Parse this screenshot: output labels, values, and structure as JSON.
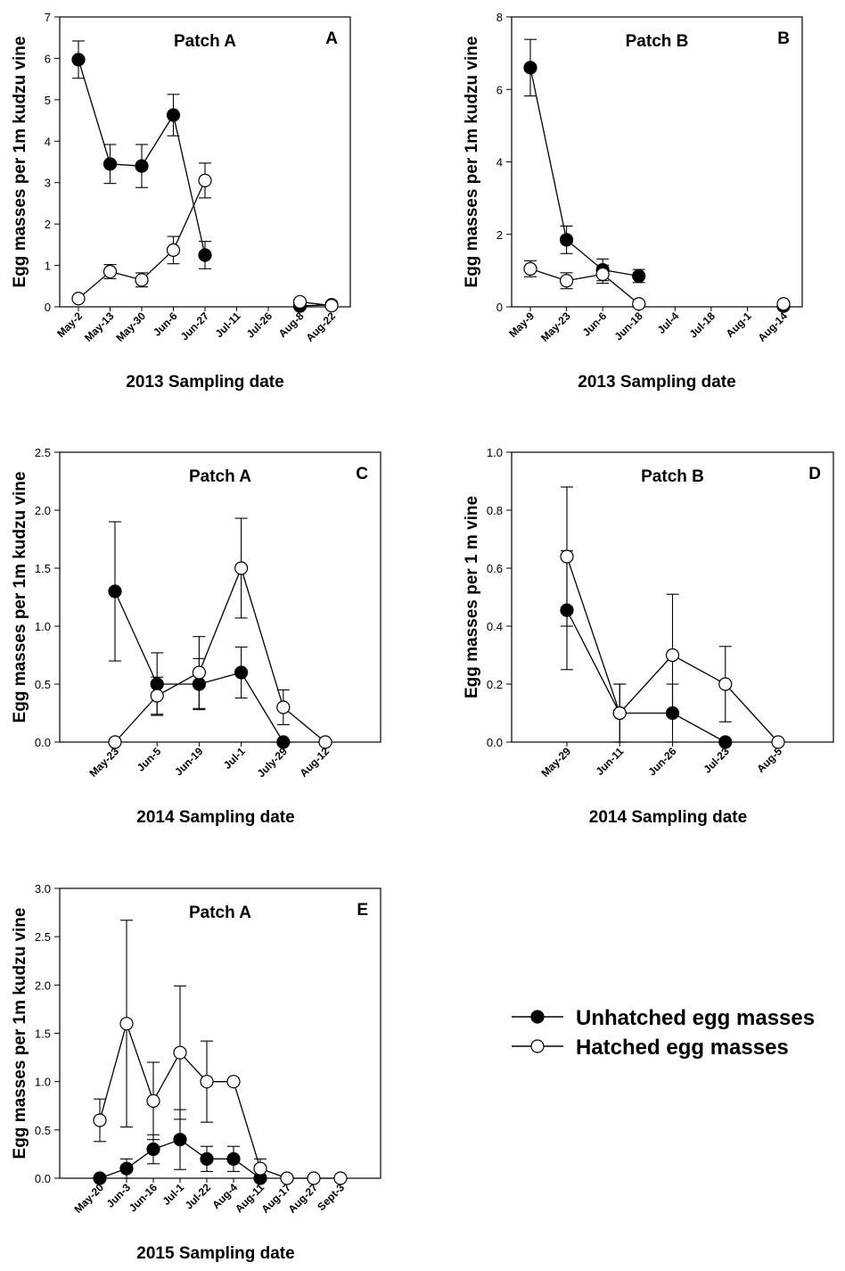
{
  "legend": {
    "unhatched": "Unhatched egg masses",
    "hatched": "Hatched egg masses"
  },
  "chart_data": [
    {
      "type": "line",
      "panel_letter": "A",
      "title": "Patch A",
      "xlabel": "2013 Sampling date",
      "ylabel": "Egg masses per 1m kudzu vine",
      "categories": [
        "May-2",
        "May-13",
        "May-30",
        "Jun-6",
        "Jun-27",
        "Jul-11",
        "Jul-26",
        "Aug-8",
        "Aug-22"
      ],
      "yticks": [
        "0",
        "1",
        "2",
        "3",
        "4",
        "5",
        "6",
        "7"
      ],
      "ylim": [
        0,
        7
      ],
      "series": [
        {
          "key": "unhatched",
          "x": [
            0,
            1,
            2,
            3,
            4
          ],
          "values": [
            5.97,
            3.45,
            3.4,
            4.63,
            1.25
          ],
          "errors": [
            0.45,
            0.47,
            0.52,
            0.5,
            0.33
          ]
        },
        {
          "key": "unhatched",
          "x": [
            7,
            8
          ],
          "values": [
            0.02,
            0.05
          ],
          "errors": [
            0.05,
            0.04
          ]
        },
        {
          "key": "hatched",
          "x": [
            0,
            1,
            2,
            3,
            4
          ],
          "values": [
            0.2,
            0.85,
            0.65,
            1.37,
            3.05
          ],
          "errors": [
            0,
            0.17,
            0.17,
            0.33,
            0.42
          ]
        },
        {
          "key": "hatched",
          "x": [
            7,
            8
          ],
          "values": [
            0.12,
            0.03
          ],
          "errors": [
            0.04,
            0.03
          ]
        }
      ]
    },
    {
      "type": "line",
      "panel_letter": "B",
      "title": "Patch B",
      "xlabel": "2013 Sampling date",
      "ylabel": "Egg masses per 1m kudzu vine",
      "categories": [
        "May-9",
        "May-23",
        "Jun-6",
        "Jun-18",
        "Jul-4",
        "Jul-18",
        "Aug-1",
        "Aug-14"
      ],
      "yticks": [
        "0",
        "2",
        "4",
        "6",
        "8"
      ],
      "ylim": [
        0,
        8
      ],
      "series": [
        {
          "key": "unhatched",
          "x": [
            0,
            1,
            2,
            3
          ],
          "values": [
            6.6,
            1.85,
            1.02,
            0.85
          ],
          "errors": [
            0.78,
            0.38,
            0.3,
            0.18
          ]
        },
        {
          "key": "unhatched",
          "x": [
            7
          ],
          "values": [
            0.02
          ],
          "errors": [
            0
          ]
        },
        {
          "key": "hatched",
          "x": [
            0,
            1,
            2,
            3
          ],
          "values": [
            1.05,
            0.72,
            0.9,
            0.08
          ],
          "errors": [
            0.22,
            0.22,
            0.25,
            0
          ]
        },
        {
          "key": "hatched",
          "x": [
            7
          ],
          "values": [
            0.08
          ],
          "errors": [
            0
          ]
        }
      ]
    },
    {
      "type": "line",
      "panel_letter": "C",
      "title": "Patch A",
      "xlabel": "2014 Sampling date",
      "ylabel": "Egg masses per 1m kudzu vine",
      "categories": [
        "May-23",
        "Jun-5",
        "Jun-19",
        "Jul-1",
        "July-29",
        "Aug-12"
      ],
      "yticks": [
        "0.0",
        "0.5",
        "1.0",
        "1.5",
        "2.0",
        "2.5"
      ],
      "ylim": [
        0,
        2.5
      ],
      "series": [
        {
          "key": "unhatched",
          "x": [
            0,
            1,
            2,
            3,
            4
          ],
          "values": [
            1.3,
            0.5,
            0.5,
            0.6,
            0.0
          ],
          "errors": [
            0.6,
            0.27,
            0.22,
            0.22,
            0
          ]
        },
        {
          "key": "hatched",
          "x": [
            0,
            1,
            2,
            3,
            4,
            5
          ],
          "values": [
            0.0,
            0.4,
            0.6,
            1.5,
            0.3,
            0.0
          ],
          "errors": [
            0,
            0.16,
            0.31,
            0.43,
            0.15,
            0
          ]
        }
      ]
    },
    {
      "type": "line",
      "panel_letter": "D",
      "title": "Patch B",
      "xlabel": "2014 Sampling date",
      "ylabel": "Egg masses per 1 m vine",
      "categories": [
        "May-29",
        "Jun-11",
        "Jun-26",
        "Jul-23",
        "Aug-5"
      ],
      "yticks": [
        "0.0",
        "0.2",
        "0.4",
        "0.6",
        "0.8",
        "1.0"
      ],
      "ylim": [
        0,
        1.0
      ],
      "series": [
        {
          "key": "unhatched",
          "x": [
            0,
            1,
            2,
            3
          ],
          "values": [
            0.455,
            0.1,
            0.1,
            0.0
          ],
          "errors": [
            0.205,
            0.1,
            0.1,
            0
          ]
        },
        {
          "key": "hatched",
          "x": [
            0,
            1,
            2,
            3,
            4
          ],
          "values": [
            0.64,
            0.1,
            0.3,
            0.2,
            0.0
          ],
          "errors": [
            0.24,
            0.1,
            0.21,
            0.13,
            0
          ]
        }
      ]
    },
    {
      "type": "line",
      "panel_letter": "E",
      "title": "Patch A",
      "xlabel": "2015 Sampling date",
      "ylabel": "Egg masses per 1m kudzu vine",
      "categories": [
        "May-20",
        "Jun-3",
        "Jun-16",
        "Jul-1",
        "Jul-22",
        "Aug-4",
        "Aug-11",
        "Aug-17",
        "Aug-27",
        "Sept-3"
      ],
      "yticks": [
        "0.0",
        "0.5",
        "1.0",
        "1.5",
        "2.0",
        "2.5",
        "3.0"
      ],
      "ylim": [
        0,
        3.0
      ],
      "series": [
        {
          "key": "unhatched",
          "x": [
            0,
            1,
            2,
            3,
            4,
            5,
            6
          ],
          "values": [
            0.0,
            0.1,
            0.3,
            0.4,
            0.2,
            0.2,
            0.0
          ],
          "errors": [
            0,
            0.1,
            0.15,
            0.31,
            0.13,
            0.13,
            0
          ]
        },
        {
          "key": "hatched",
          "x": [
            0,
            1,
            2,
            3,
            4,
            5,
            6,
            7,
            8,
            9
          ],
          "values": [
            0.6,
            1.6,
            0.8,
            1.3,
            1.0,
            1.0,
            0.1,
            0.0,
            0.0,
            0.0
          ],
          "errors": [
            0.22,
            1.07,
            0.4,
            0.69,
            0.42,
            0,
            0.1,
            0,
            0,
            0
          ]
        }
      ]
    }
  ]
}
